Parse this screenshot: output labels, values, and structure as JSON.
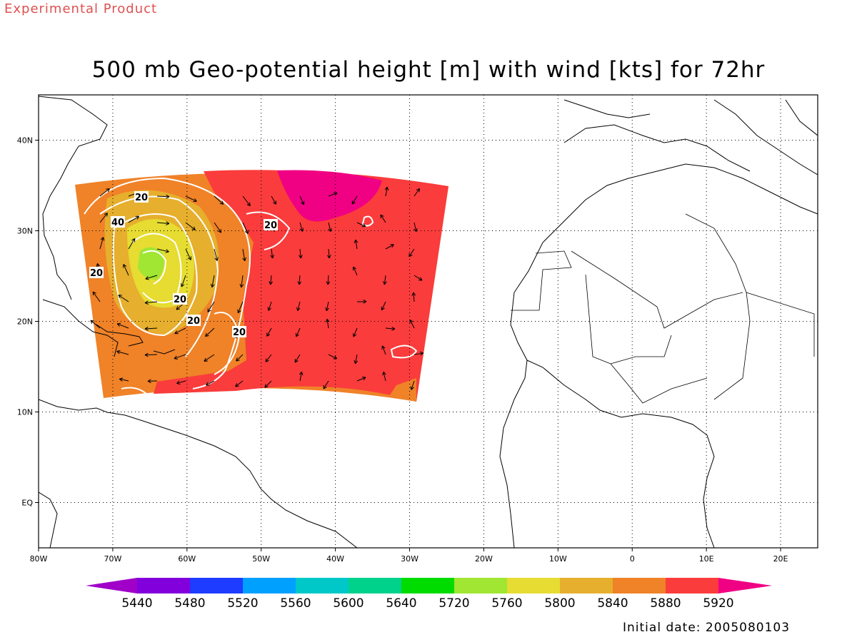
{
  "stamp": "Experimental Product",
  "title": "500 mb Geo-potential height [m] with wind [kts] for 72hr",
  "initial_date": "Initial date: 2005080103",
  "map": {
    "lon_range": [
      -80,
      25
    ],
    "lat_range": [
      -5,
      45
    ],
    "x_ticks": [
      {
        "v": -80,
        "label": "80W"
      },
      {
        "v": -70,
        "label": "70W"
      },
      {
        "v": -60,
        "label": "60W"
      },
      {
        "v": -50,
        "label": "50W"
      },
      {
        "v": -40,
        "label": "40W"
      },
      {
        "v": -30,
        "label": "30W"
      },
      {
        "v": -20,
        "label": "20W"
      },
      {
        "v": -10,
        "label": "10W"
      },
      {
        "v": 0,
        "label": "0"
      },
      {
        "v": 10,
        "label": "10E"
      },
      {
        "v": 20,
        "label": "20E"
      }
    ],
    "y_ticks": [
      {
        "v": 40,
        "label": "40N"
      },
      {
        "v": 30,
        "label": "30N"
      },
      {
        "v": 20,
        "label": "20N"
      },
      {
        "v": 10,
        "label": "10N"
      },
      {
        "v": 0,
        "label": "EQ"
      }
    ],
    "grid": "dotted",
    "isotach_labels": [
      "20",
      "40",
      "20",
      "20",
      "20",
      "20",
      "20"
    ]
  },
  "colorbar": {
    "labels": [
      "5440",
      "5480",
      "5520",
      "5560",
      "5600",
      "5640",
      "5720",
      "5760",
      "5800",
      "5840",
      "5880",
      "5920"
    ],
    "colors": [
      "#a000c8",
      "#8200dc",
      "#1e3cff",
      "#00a0ff",
      "#00c8c8",
      "#00d28c",
      "#00dc00",
      "#a0e632",
      "#e6dc32",
      "#e6af2d",
      "#f08228",
      "#fa3c3c",
      "#f00082"
    ]
  }
}
